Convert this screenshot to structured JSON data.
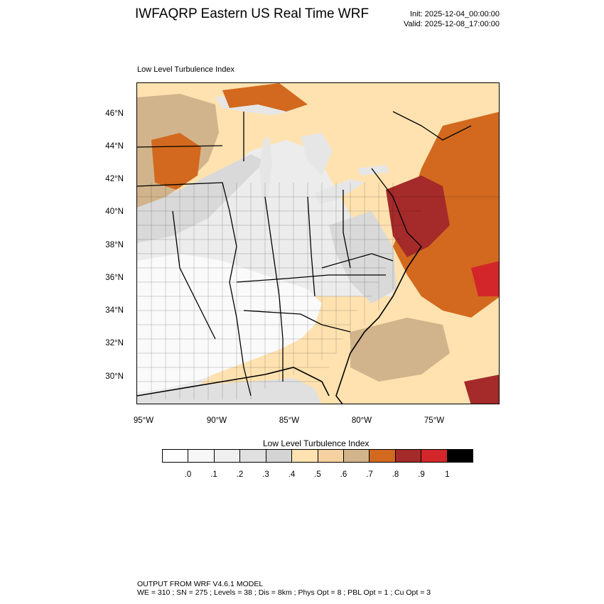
{
  "header": {
    "title": "IWFAQRP Eastern US Real Time WRF",
    "init": "Init: 2025-12-04_00:00:00",
    "valid": "Valid: 2025-12-08_17:00:00"
  },
  "map": {
    "panel_title": "Low Level Turbulence Index",
    "lat_labels": [
      "46°N",
      "44°N",
      "42°N",
      "40°N",
      "38°N",
      "36°N",
      "34°N",
      "32°N",
      "30°N"
    ],
    "lon_labels": [
      "95°W",
      "90°W",
      "85°W",
      "80°W",
      "75°W"
    ]
  },
  "colorbar": {
    "title": "Low Level Turbulence Index",
    "colors": [
      "#ffffff",
      "#f7f7f7",
      "#efefef",
      "#e0e0e0",
      "#d4d4d4",
      "#ffe2b0",
      "#f5d0a0",
      "#d2b48c",
      "#d2691e",
      "#a52a2a",
      "#d3262a",
      "#000000"
    ],
    "labels": [
      ".0",
      ".1",
      ".2",
      ".3",
      ".4",
      ".5",
      ".6",
      ".7",
      ".8",
      ".9",
      "1"
    ]
  },
  "footer": {
    "line1": "OUTPUT FROM WRF V4.6.1 MODEL",
    "line2": "WE = 310 ; SN = 275 ; Levels = 38 ; Dis = 8km ; Phys Opt = 8 ; PBL Opt = 1 ; Cu Opt = 3"
  }
}
